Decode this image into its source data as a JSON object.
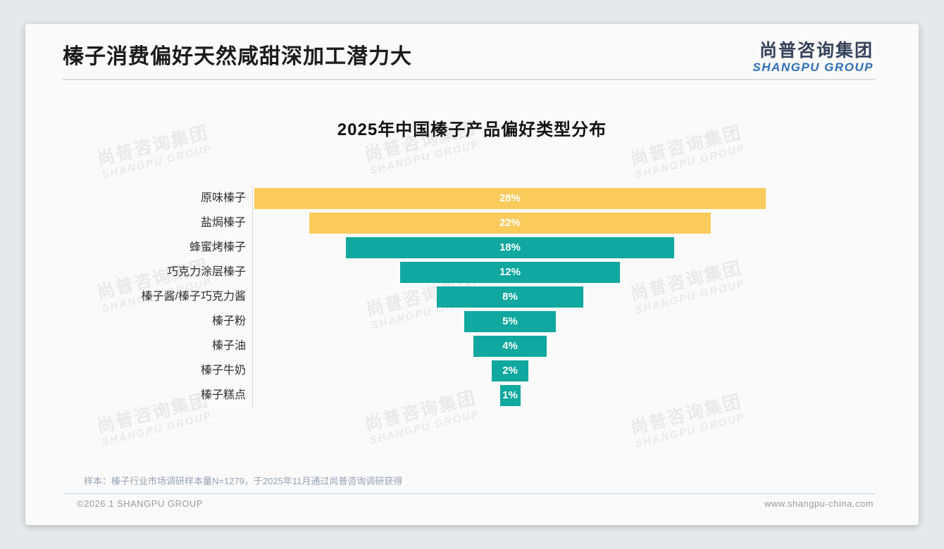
{
  "page": {
    "slide_title": "榛子消费偏好天然咸甜深加工潜力大",
    "logo": {
      "cn": "尚普咨询集团",
      "en": "SHANGPU GROUP"
    },
    "watermark": {
      "line1": "尚普咨询集团",
      "line2": "SHANGPU GROUP"
    },
    "note": "样本：榛子行业市场调研样本量N=1279，于2025年11月通过尚普咨询调研获得",
    "footer": {
      "left": "©2026.1 SHANGPU GROUP",
      "right": "www.shangpu-china.com"
    }
  },
  "chart_data": {
    "type": "bar",
    "variant": "centered-funnel-horizontal",
    "title": "2025年中国榛子产品偏好类型分布",
    "categories": [
      "原味榛子",
      "盐焗榛子",
      "蜂蜜烤榛子",
      "巧克力涂层榛子",
      "榛子酱/榛子巧克力酱",
      "榛子粉",
      "榛子油",
      "榛子牛奶",
      "榛子糕点"
    ],
    "values": [
      28,
      22,
      18,
      12,
      8,
      5,
      4,
      2,
      1
    ],
    "value_labels": [
      "28%",
      "22%",
      "18%",
      "12%",
      "8%",
      "5%",
      "4%",
      "2%",
      "1%"
    ],
    "unit": "%",
    "xlim": [
      0,
      28
    ],
    "grid": false,
    "legend": false,
    "colors": {
      "highlight": "#FBCB5B",
      "default": "#10A89F",
      "highlight_count": 2,
      "value_label": "#FFFFFF"
    }
  }
}
